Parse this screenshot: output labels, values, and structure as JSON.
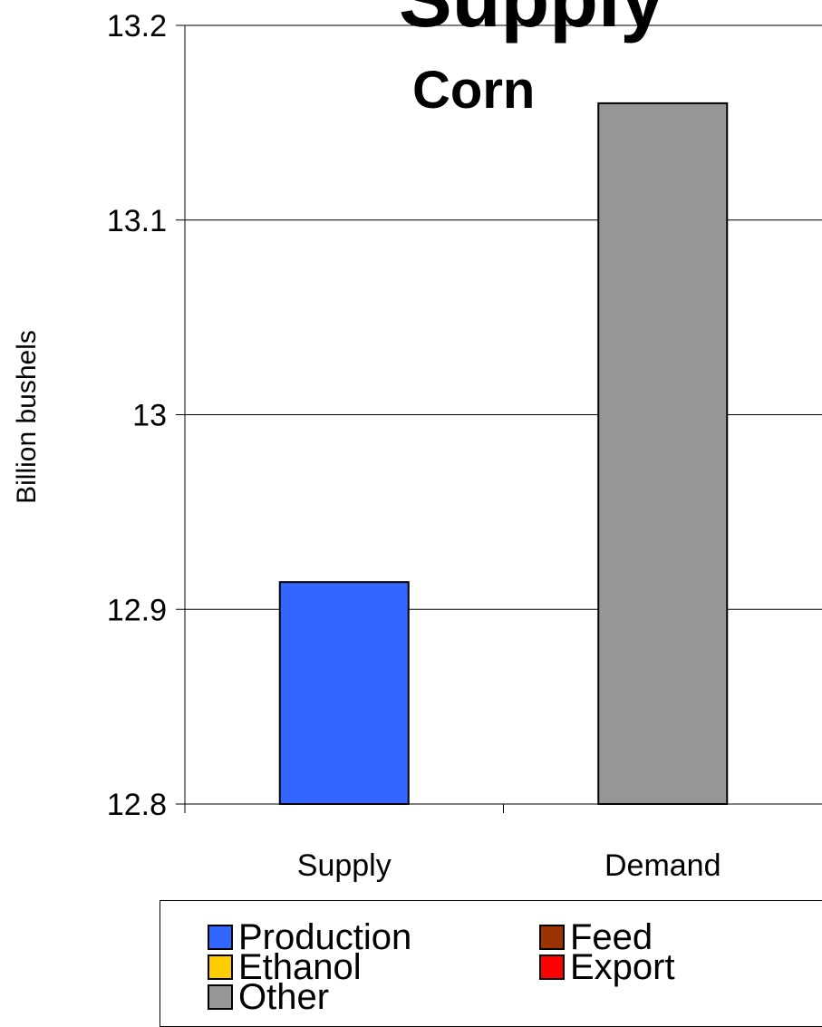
{
  "chart_data": {
    "type": "bar",
    "title": "Supply",
    "subtitle": "Corn",
    "ylabel": "Billion bushels",
    "xlabel": "",
    "ylim": [
      12.8,
      13.2
    ],
    "yticks": [
      "12.8",
      "12.9",
      "13",
      "13.1",
      "13.2"
    ],
    "categories": [
      "Supply",
      "Demand"
    ],
    "bars": [
      {
        "category": "Supply",
        "value": 12.914,
        "series": "Production",
        "color": "#3366ff"
      },
      {
        "category": "Demand",
        "value": 13.16,
        "series": "Other",
        "color": "#969696"
      }
    ],
    "series": [
      {
        "name": "Production",
        "color": "#3366ff"
      },
      {
        "name": "Feed",
        "color": "#993300"
      },
      {
        "name": "Ethanol",
        "color": "#ffcc00"
      },
      {
        "name": "Export",
        "color": "#ff0000"
      },
      {
        "name": "Other",
        "color": "#969696"
      }
    ],
    "grid": true,
    "legend_position": "bottom"
  }
}
